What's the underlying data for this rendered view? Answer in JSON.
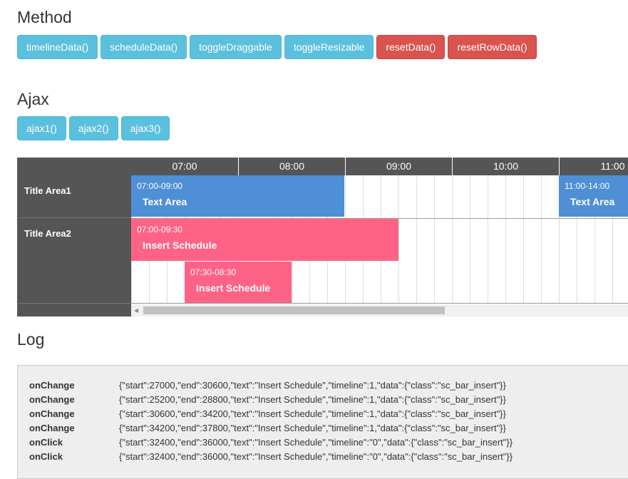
{
  "method": {
    "title": "Method",
    "buttons": [
      {
        "label": "timelineData()",
        "style": "info"
      },
      {
        "label": "scheduleData()",
        "style": "info"
      },
      {
        "label": "toggleDraggable",
        "style": "info"
      },
      {
        "label": "toggleResizable",
        "style": "info"
      },
      {
        "label": "resetData()",
        "style": "danger"
      },
      {
        "label": "resetRowData()",
        "style": "danger"
      }
    ]
  },
  "ajax": {
    "title": "Ajax",
    "buttons": [
      {
        "label": "ajax1()"
      },
      {
        "label": "ajax2()"
      },
      {
        "label": "ajax3()"
      }
    ]
  },
  "scheduler": {
    "hours": [
      "07:00",
      "08:00",
      "09:00",
      "10:00",
      "11:00"
    ],
    "rows": [
      {
        "title": "Title Area1"
      },
      {
        "title": "Title Area2"
      }
    ],
    "bars": [
      {
        "time": "07:00-09:00",
        "text": "Text Area",
        "color": "#4f8fd6"
      },
      {
        "time": "11:00-14:00",
        "text": "Text Area",
        "color": "#4f8fd6"
      },
      {
        "time": "07:00-09:30",
        "text": "Insert Schedule",
        "color": "#fe6385"
      },
      {
        "time": "07:30-08:30",
        "text": "Insert Schedule",
        "color": "#fe6385"
      }
    ]
  },
  "log": {
    "title": "Log",
    "entries": [
      {
        "type": "onChange",
        "value": "{\"start\":27000,\"end\":30600,\"text\":\"Insert Schedule\",\"timeline\":1,\"data\":{\"class\":\"sc_bar_insert\"}}"
      },
      {
        "type": "onChange",
        "value": "{\"start\":25200,\"end\":28800,\"text\":\"Insert Schedule\",\"timeline\":1,\"data\":{\"class\":\"sc_bar_insert\"}}"
      },
      {
        "type": "onChange",
        "value": "{\"start\":30600,\"end\":34200,\"text\":\"Insert Schedule\",\"timeline\":1,\"data\":{\"class\":\"sc_bar_insert\"}}"
      },
      {
        "type": "onChange",
        "value": "{\"start\":34200,\"end\":37800,\"text\":\"Insert Schedule\",\"timeline\":1,\"data\":{\"class\":\"sc_bar_insert\"}}"
      },
      {
        "type": "onClick",
        "value": "{\"start\":32400,\"end\":36000,\"text\":\"Insert Schedule\",\"timeline\":\"0\",\"data\":{\"class\":\"sc_bar_insert\"}}"
      },
      {
        "type": "onClick",
        "value": "{\"start\":32400,\"end\":36000,\"text\":\"Insert Schedule\",\"timeline\":\"0\",\"data\":{\"class\":\"sc_bar_insert\"}}"
      }
    ]
  }
}
